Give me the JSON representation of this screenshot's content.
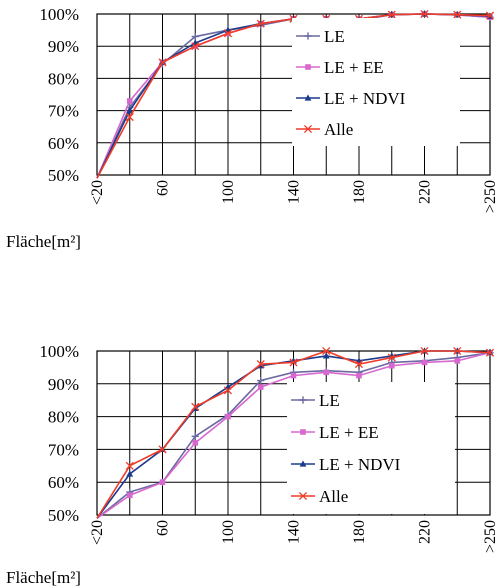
{
  "colors": {
    "LE": "#6a6aa0",
    "LE + EE": "#d868d0",
    "LE + NDVI": "#1c3b8c",
    "Alle": "#f03c28"
  },
  "chart_data": [
    {
      "type": "line",
      "x": [
        20,
        40,
        60,
        80,
        100,
        120,
        140,
        160,
        180,
        200,
        220,
        240,
        260
      ],
      "x_tick_labels": [
        "<20",
        "60",
        "100",
        "140",
        "180",
        "220",
        ">250"
      ],
      "x_tick_values": [
        20,
        60,
        100,
        140,
        180,
        220,
        260
      ],
      "y_tick_labels": [
        "50%",
        "60%",
        "70%",
        "80%",
        "90%",
        "100%"
      ],
      "ylim": [
        50,
        100
      ],
      "xlim": [
        20,
        260
      ],
      "xlabel": "Fläche[m²]",
      "grid": true,
      "legend_position": "right",
      "series": [
        {
          "name": "LE",
          "marker": "plus",
          "values": [
            49,
            71,
            84.5,
            93,
            95,
            96.5,
            98.5,
            98.5,
            98,
            99.8,
            100,
            99.7,
            99
          ]
        },
        {
          "name": "LE + EE",
          "marker": "square",
          "values": [
            49,
            73,
            85,
            90,
            94,
            97,
            98.5,
            98.5,
            98.3,
            99.8,
            100,
            99.8,
            99
          ]
        },
        {
          "name": "LE + NDVI",
          "marker": "triangle",
          "values": [
            49,
            70,
            85,
            91,
            95,
            97,
            98.5,
            98.5,
            98.5,
            99.8,
            100,
            99.8,
            99.3
          ]
        },
        {
          "name": "Alle",
          "marker": "x",
          "values": [
            49,
            68,
            85,
            90,
            94,
            97,
            98.5,
            98.5,
            98.5,
            99.8,
            100,
            99.8,
            99.5
          ]
        }
      ]
    },
    {
      "type": "line",
      "x": [
        20,
        40,
        60,
        80,
        100,
        120,
        140,
        160,
        180,
        200,
        220,
        240,
        260
      ],
      "x_tick_labels": [
        "<20",
        "60",
        "100",
        "140",
        "180",
        "220",
        ">250"
      ],
      "x_tick_values": [
        20,
        60,
        100,
        140,
        180,
        220,
        260
      ],
      "y_tick_labels": [
        "50%",
        "60%",
        "70%",
        "80%",
        "90%",
        "100%"
      ],
      "ylim": [
        50,
        100
      ],
      "xlim": [
        20,
        260
      ],
      "xlabel": "Fläche[m²]",
      "grid": true,
      "legend_position": "right",
      "series": [
        {
          "name": "LE",
          "marker": "plus",
          "values": [
            49,
            57,
            60,
            74,
            80.5,
            91,
            93.5,
            94,
            93.5,
            96.5,
            97,
            98,
            99.5
          ]
        },
        {
          "name": "LE + EE",
          "marker": "square",
          "values": [
            49,
            56,
            60,
            72,
            80,
            89,
            92.5,
            93.5,
            92.5,
            95.5,
            96.5,
            97,
            99.5
          ]
        },
        {
          "name": "LE + NDVI",
          "marker": "triangle",
          "values": [
            49,
            62.5,
            70,
            82.5,
            89,
            95.5,
            97,
            98.5,
            97,
            98.5,
            100,
            100,
            99.5
          ]
        },
        {
          "name": "Alle",
          "marker": "x",
          "values": [
            49,
            65,
            70,
            83,
            88,
            96,
            96.5,
            100,
            96,
            98,
            100,
            100,
            99.5
          ]
        }
      ]
    }
  ]
}
